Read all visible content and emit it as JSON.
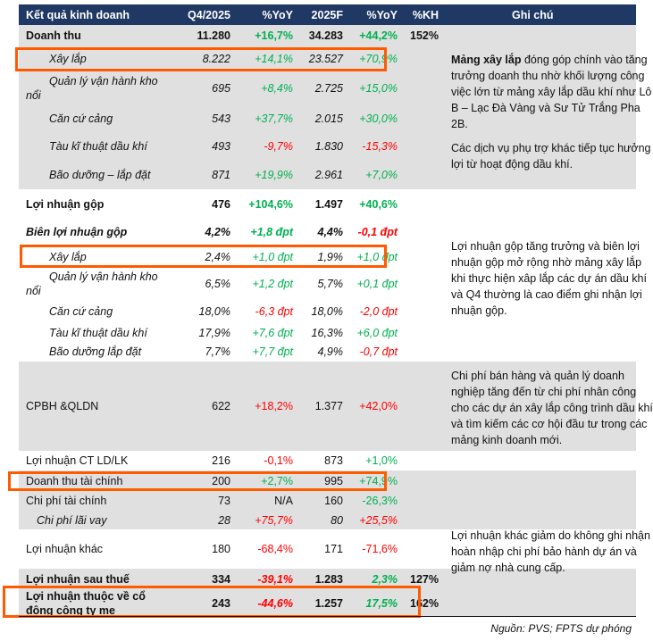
{
  "header": {
    "label": "Kết quả kinh doanh",
    "q4": "Q4/2025",
    "yoy1": "%YoY",
    "f2025": "2025F",
    "yoy2": "%YoY",
    "kh": "%KH",
    "note": "Ghi chú"
  },
  "colors": {
    "header_bg": "#1f3864",
    "positive": "#00b050",
    "negative": "#ff0000",
    "highlight": "#ff5a00",
    "band": "#e0e0e0"
  },
  "rows": [
    {
      "label": "Doanh thu",
      "q4": "11.280",
      "yoy1": "+16,7%",
      "f2025": "34.283",
      "yoy2": "+44,2%",
      "kh": "152%",
      "c1": "pos",
      "c2": "pos",
      "emphasis": "bold",
      "band": true,
      "highlight": false
    },
    {
      "label": "Xây lắp",
      "q4": "8.222",
      "yoy1": "+14,1%",
      "f2025": "23.527",
      "yoy2": "+70,9%",
      "kh": "",
      "c1": "pos",
      "c2": "pos",
      "emphasis": "italic",
      "indent": true,
      "band": true,
      "highlight": true
    },
    {
      "label": "Quản lý vận hành kho nổi",
      "q4": "695",
      "yoy1": "+8,4%",
      "f2025": "2.725",
      "yoy2": "+15,0%",
      "kh": "",
      "c1": "pos",
      "c2": "pos",
      "emphasis": "italic",
      "indent": true,
      "band": true
    },
    {
      "label": "Căn cứ cảng",
      "q4": "543",
      "yoy1": "+37,7%",
      "f2025": "2.015",
      "yoy2": "+30,0%",
      "kh": "",
      "c1": "pos",
      "c2": "pos",
      "emphasis": "italic",
      "indent": true,
      "band": true
    },
    {
      "label": "Tàu kĩ thuật dầu khí",
      "q4": "493",
      "yoy1": "-9,7%",
      "f2025": "1.830",
      "yoy2": "-15,3%",
      "kh": "",
      "c1": "neg",
      "c2": "neg",
      "emphasis": "italic",
      "indent": true,
      "band": true
    },
    {
      "label": "Bão dưỡng – lắp đặt",
      "q4": "871",
      "yoy1": "+19,9%",
      "f2025": "2.961",
      "yoy2": "+7,0%",
      "kh": "",
      "c1": "pos",
      "c2": "pos",
      "emphasis": "italic",
      "indent": true,
      "band": true
    },
    {
      "label": "Lợi nhuận gộp",
      "q4": "476",
      "yoy1": "+104,6%",
      "f2025": "1.497",
      "yoy2": "+40,6%",
      "kh": "",
      "c1": "pos",
      "c2": "pos",
      "emphasis": "bold",
      "band": false
    },
    {
      "label": "Biên lợi nhuận gộp",
      "q4": "4,2%",
      "yoy1": "+1,8 đpt",
      "f2025": "4,4%",
      "yoy2": "-0,1 đpt",
      "kh": "",
      "c1": "pos",
      "c2": "neg",
      "emphasis": "bolditalic",
      "band": false
    },
    {
      "label": "Xây lắp",
      "q4": "2,4%",
      "yoy1": "+1,0 đpt",
      "f2025": "1,9%",
      "yoy2": "+1,0 đpt",
      "kh": "",
      "c1": "pos",
      "c2": "pos",
      "emphasis": "italic",
      "indent": true,
      "band": false,
      "highlight": true
    },
    {
      "label": "Quản lý vận hành kho nổi",
      "q4": "6,5%",
      "yoy1": "+1,2 đpt",
      "f2025": "5,7%",
      "yoy2": "+0,1 đpt",
      "kh": "",
      "c1": "pos",
      "c2": "pos",
      "emphasis": "italic",
      "indent": true,
      "band": false
    },
    {
      "label": "Căn cứ cảng",
      "q4": "18,0%",
      "yoy1": "-6,3 đpt",
      "f2025": "18,0%",
      "yoy2": "-2,0 đpt",
      "kh": "",
      "c1": "neg",
      "c2": "neg",
      "emphasis": "italic",
      "indent": true,
      "band": false
    },
    {
      "label": "Tàu kĩ thuật dầu khí",
      "q4": "17,9%",
      "yoy1": "+7,6 đpt",
      "f2025": "16,3%",
      "yoy2": "+6,0 đpt",
      "kh": "",
      "c1": "pos",
      "c2": "pos",
      "emphasis": "italic",
      "indent": true,
      "band": false
    },
    {
      "label": "Bão dưỡng lắp đặt",
      "q4": "7,7%",
      "yoy1": "+7,7 đpt",
      "f2025": "4,9%",
      "yoy2": "-0,7 đpt",
      "kh": "",
      "c1": "pos",
      "c2": "neg",
      "emphasis": "italic",
      "indent": true,
      "band": false
    },
    {
      "label": "CPBH &QLDN",
      "q4": "622",
      "yoy1": "+18,2%",
      "f2025": "1.377",
      "yoy2": "+42,0%",
      "kh": "",
      "c1": "neg",
      "c2": "neg",
      "emphasis": "",
      "band": true
    },
    {
      "label": "Lợi nhuận CT LD/LK",
      "q4": "216",
      "yoy1": "-0,1%",
      "f2025": "873",
      "yoy2": "+1,0%",
      "kh": "",
      "c1": "neg",
      "c2": "pos",
      "emphasis": "",
      "band": false
    },
    {
      "label": "Doanh thu tài chính",
      "q4": "200",
      "yoy1": "+2,7%",
      "f2025": "995",
      "yoy2": "+74,9%",
      "kh": "",
      "c1": "pos",
      "c2": "pos",
      "emphasis": "",
      "band": true,
      "highlight": true
    },
    {
      "label": "Chi phí tài chính",
      "q4": "73",
      "yoy1": "N/A",
      "f2025": "160",
      "yoy2": "-26,3%",
      "kh": "",
      "c1": "",
      "c2": "pos",
      "emphasis": "",
      "band": true
    },
    {
      "label": "Chi phí lãi vay",
      "q4": "28",
      "yoy1": "+75,7%",
      "f2025": "80",
      "yoy2": "+25,5%",
      "kh": "",
      "c1": "neg",
      "c2": "neg",
      "emphasis": "italic",
      "indent2": true,
      "band": true
    },
    {
      "label": "Lợi nhuận khác",
      "q4": "180",
      "yoy1": "-68,4%",
      "f2025": "171",
      "yoy2": "-71,6%",
      "kh": "",
      "c1": "neg",
      "c2": "neg",
      "emphasis": "",
      "band": false
    },
    {
      "label": "Lợi nhuận sau thuế",
      "q4": "334",
      "yoy1": "-39,1%",
      "f2025": "1.283",
      "yoy2": "2,3%",
      "kh": "127%",
      "c1": "neg",
      "c2": "pos",
      "emphasis": "bold",
      "yoyitalic": true,
      "band": true
    },
    {
      "label": "Lợi nhuận thuộc về cổ đông công ty mẹ",
      "q4": "243",
      "yoy1": "-44,6%",
      "f2025": "1.257",
      "yoy2": "17,5%",
      "kh": "162%",
      "c1": "neg",
      "c2": "pos",
      "emphasis": "bold",
      "yoyitalic": true,
      "band": true,
      "highlight": true
    }
  ],
  "notes": {
    "revenue_bold": "Mảng xây lắp",
    "revenue_rest": " đóng góp chính vào tăng trưởng doanh thu nhờ khối lượng công việc lớn từ mảng xây lắp dầu khí như Lô B – Lạc Đà Vàng và Sư Tử Trắng Pha 2B.",
    "revenue_2": "Các dịch vụ phụ trợ khác tiếp tục hưởng lợi từ hoạt động dầu khí.",
    "gross_profit": "Lợi nhuận gộp tăng trưởng và biên lợi nhuận gộp mở rộng nhờ mảng xây lắp khi thực hiện xâp lắp các dự án dầu khí và Q4 thường là cao điểm ghi nhận lợi nhuận gộp.",
    "sga": "Chi phí bán hàng và quản lý doanh nghiệp tăng đến từ chi phí nhân công cho các dự án xây lắp công trình dầu khí và tìm kiếm các cơ hội đầu tư trong các mảng kinh doanh mới.",
    "other_profit": "Lợi nhuận khác giảm do không ghi nhận hoàn nhập chi phí bảo hành dự án và giảm nợ nhà cung cấp."
  },
  "source": "Nguồn: PVS; FPTS dự phóng"
}
